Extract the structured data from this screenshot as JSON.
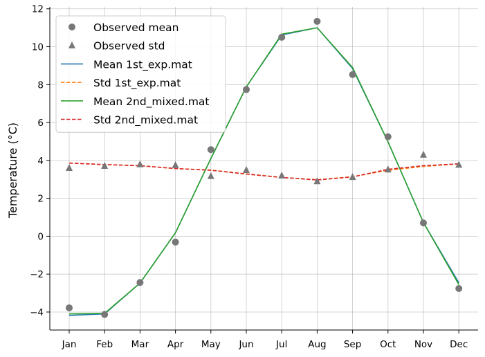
{
  "chart_data": {
    "type": "line",
    "categories": [
      "Jan",
      "Feb",
      "Mar",
      "Apr",
      "May",
      "Jun",
      "Jul",
      "Aug",
      "Sep",
      "Oct",
      "Nov",
      "Dec"
    ],
    "ylabel": "Temperature (°C)",
    "xlabel": "",
    "ylim": [
      -4.95,
      12.1
    ],
    "yticks": [
      -4,
      -2,
      0,
      2,
      4,
      6,
      8,
      10,
      12
    ],
    "ytick_labels": [
      "−4",
      "−2",
      "0",
      "2",
      "4",
      "6",
      "8",
      "10",
      "12"
    ],
    "grid": true,
    "legend_position": "top-left",
    "series": [
      {
        "name": "Observed mean",
        "kind": "scatter",
        "marker": "circle",
        "color": "#777777",
        "values": [
          -3.78,
          -4.13,
          -2.44,
          -0.31,
          4.57,
          7.74,
          10.5,
          11.34,
          8.53,
          5.25,
          0.7,
          -2.76
        ]
      },
      {
        "name": "Observed std",
        "kind": "scatter",
        "marker": "triangle",
        "color": "#777777",
        "values": [
          3.6,
          3.71,
          3.79,
          3.75,
          3.17,
          3.49,
          3.2,
          2.9,
          3.12,
          3.52,
          4.3,
          3.77
        ]
      },
      {
        "name": "Mean 1st_exp.mat",
        "kind": "line",
        "dash": "solid",
        "color": "#1f77b4",
        "values": [
          -4.18,
          -4.1,
          -2.47,
          0.18,
          4.1,
          7.88,
          10.62,
          11.0,
          8.85,
          4.98,
          0.72,
          -2.46
        ]
      },
      {
        "name": "Std 1st_exp.mat",
        "kind": "line",
        "dash": "dashed",
        "color": "#ff7f0e",
        "values": [
          3.86,
          3.78,
          3.72,
          3.57,
          3.49,
          3.29,
          3.1,
          2.98,
          3.14,
          3.48,
          3.68,
          3.82
        ]
      },
      {
        "name": "Mean 2nd_mixed.mat",
        "kind": "line",
        "dash": "solid",
        "color": "#2ca02c",
        "values": [
          -4.1,
          -4.07,
          -2.47,
          0.18,
          4.1,
          7.88,
          10.66,
          11.0,
          8.9,
          4.98,
          0.72,
          -2.55
        ]
      },
      {
        "name": "Std 2nd_mixed.mat",
        "kind": "line",
        "dash": "dashed",
        "color": "#d62728",
        "values": [
          3.86,
          3.78,
          3.72,
          3.57,
          3.48,
          3.28,
          3.1,
          2.97,
          3.13,
          3.53,
          3.72,
          3.82
        ]
      }
    ]
  }
}
